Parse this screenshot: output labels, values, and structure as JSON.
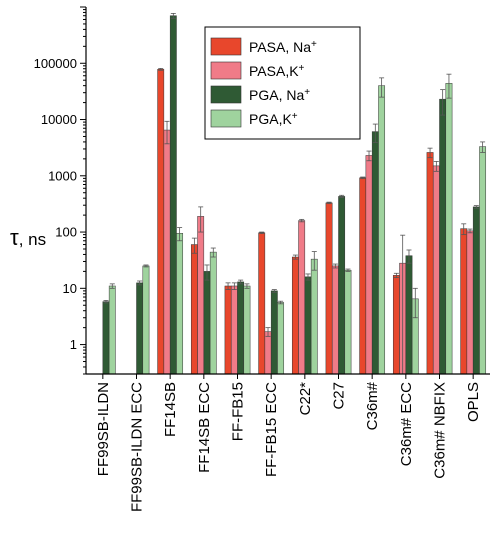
{
  "chart_data": {
    "type": "bar",
    "ylabel": "τ, ns",
    "ylabel_parts": {
      "symbol": "τ",
      "rest": ", ns"
    },
    "xlabel": "",
    "yscale": "log",
    "ylim": [
      0.3,
      1000000
    ],
    "yticks": [
      1,
      10,
      100,
      1000,
      10000,
      100000
    ],
    "ytick_labels": [
      "1",
      "10",
      "100",
      "1000",
      "10000",
      "100000"
    ],
    "legend_position": "top-right",
    "categories": [
      "FF99SB-ILDN",
      "FF99SB-ILDN ECC",
      "FF14SB",
      "FF14SB ECC",
      "FF-FB15",
      "FF-FB15 ECC",
      "C22*",
      "C27",
      "C36m#",
      "C36m# ECC",
      "C36m# NBFIX",
      "OPLS"
    ],
    "series": [
      {
        "name": "PASA, Na+",
        "name_parts": {
          "base": "PASA, Na",
          "sup": "+"
        },
        "color": "#e8472c",
        "values": [
          null,
          null,
          78000,
          60,
          11,
          97,
          36,
          330,
          920,
          17,
          2600,
          115
        ],
        "err": [
          null,
          null,
          3000,
          18,
          1.5,
          3,
          3,
          10,
          30,
          1.5,
          500,
          25
        ]
      },
      {
        "name": "PASA,K+",
        "name_parts": {
          "base": "PASA,K",
          "sup": "+"
        },
        "color": "#f07b88",
        "values": [
          null,
          null,
          6500,
          190,
          11,
          1.7,
          160,
          25,
          2300,
          28,
          1500,
          105
        ],
        "err": [
          null,
          null,
          2800,
          90,
          1.5,
          0.3,
          8,
          2,
          450,
          60,
          300,
          8
        ]
      },
      {
        "name": "PGA, Na+",
        "name_parts": {
          "base": "PGA, Na",
          "sup": "+"
        },
        "color": "#2f5a34",
        "values": [
          5.8,
          12.5,
          700000,
          20,
          13,
          9,
          16,
          430,
          6100,
          38,
          23000,
          280
        ],
        "err": [
          0.3,
          1,
          70000,
          6,
          1,
          0.5,
          2,
          20,
          2200,
          10,
          11000,
          15
        ]
      },
      {
        "name": "PGA,K+",
        "name_parts": {
          "base": "PGA,K",
          "sup": "+"
        },
        "color": "#9fd39e",
        "values": [
          11,
          25,
          95,
          44,
          11,
          5.6,
          33,
          21,
          40000,
          6.5,
          44000,
          3300
        ],
        "err": [
          1,
          1,
          25,
          8,
          1,
          0.3,
          12,
          1,
          15000,
          3.5,
          20000,
          700
        ]
      }
    ]
  }
}
